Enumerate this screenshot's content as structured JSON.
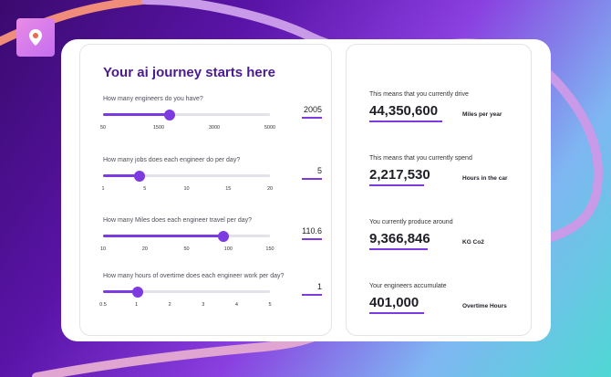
{
  "left": {
    "title": "Your ai journey starts here",
    "sliders": [
      {
        "question": "How many engineers do you have?",
        "value": "2005",
        "position": 0.4,
        "ticks": [
          "50",
          "1500",
          "3000",
          "5000"
        ]
      },
      {
        "question": "How many jobs does each engineer do per day?",
        "value": "5",
        "position": 0.22,
        "ticks": [
          "1",
          "5",
          "10",
          "15",
          "20"
        ]
      },
      {
        "question": "How many Miles does each engineer travel per day?",
        "value": "110.6",
        "position": 0.72,
        "ticks": [
          "10",
          "20",
          "50",
          "100",
          "150"
        ]
      },
      {
        "question": "How many hours of overtime does each engineer work per day?",
        "value": "1",
        "position": 0.21,
        "ticks": [
          "0.5",
          "1",
          "2",
          "3",
          "4",
          "5"
        ]
      }
    ]
  },
  "right": {
    "stats": [
      {
        "label": "This means that you currently drive",
        "value": "44,350,600",
        "unit": "Miles per year"
      },
      {
        "label": "This means that you currently spend",
        "value": "2,217,530",
        "unit": "Hours in the car"
      },
      {
        "label": "You currently produce around",
        "value": "9,366,846",
        "unit": "KG Co2"
      },
      {
        "label": "Your engineers accumulate",
        "value": "401,000",
        "unit": "Overtime Hours"
      }
    ]
  },
  "colors": {
    "accent": "#7c3ae0",
    "title": "#4b1b8e"
  }
}
